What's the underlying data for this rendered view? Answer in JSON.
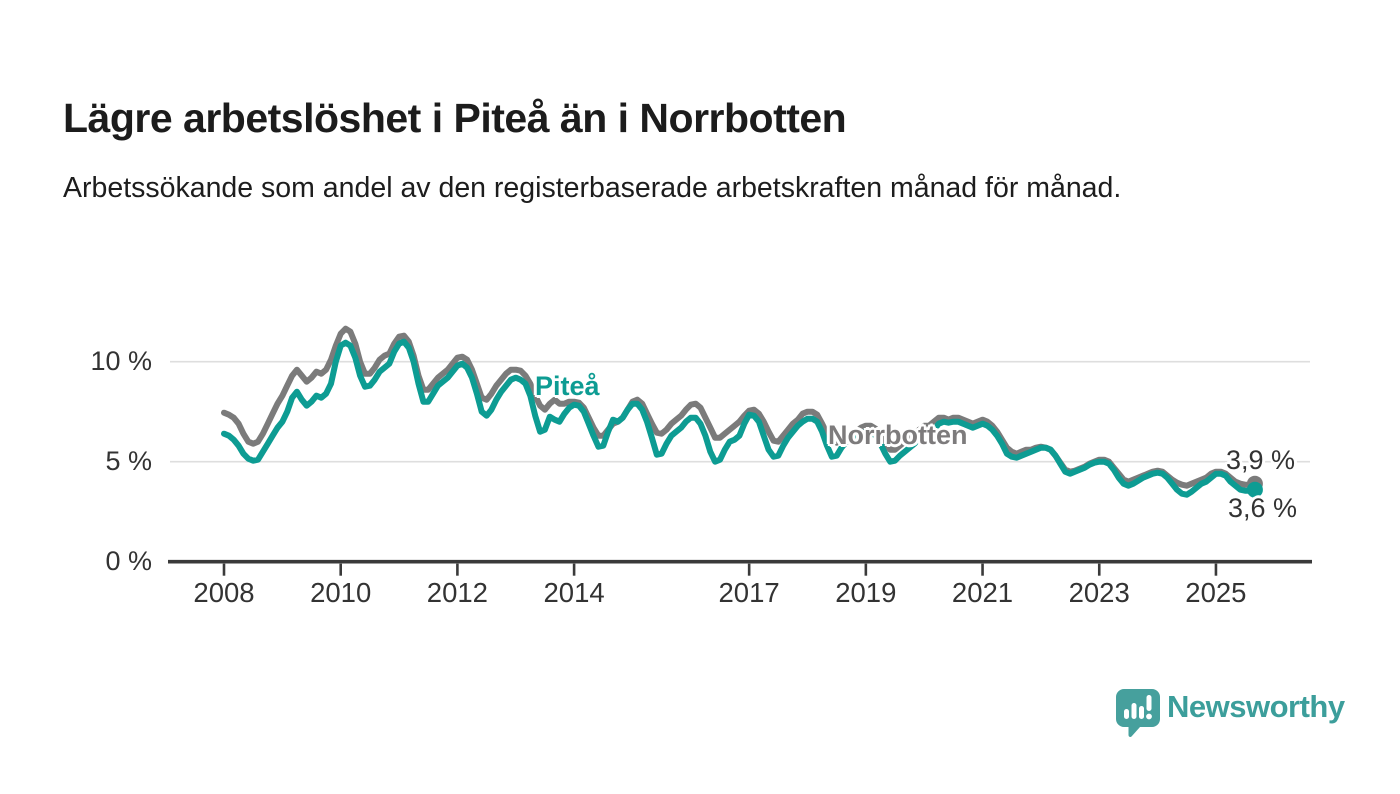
{
  "header": {
    "title": "Lägre arbetslöshet i Piteå än i Norrbotten",
    "subtitle": "Arbetssökande som andel av den registerbaserade arbetskraften månad för månad."
  },
  "chart_data": {
    "type": "line",
    "title": "Lägre arbetslöshet i Piteå än i Norrbotten",
    "subtitle": "Arbetssökande som andel av den registerbaserade arbetskraften månad för månad.",
    "unit": "%",
    "frequency": "monthly",
    "x_start": {
      "year": 2008,
      "month": 1
    },
    "x_end": {
      "year": 2025,
      "month": 9
    },
    "x_tick_years": [
      2008,
      2010,
      2012,
      2014,
      2017,
      2019,
      2021,
      2023,
      2025
    ],
    "x_tick_labels": [
      "2008",
      "2010",
      "2012",
      "2014",
      "2017",
      "2019",
      "2021",
      "2023",
      "2025"
    ],
    "y_ticks": [
      {
        "value": 0,
        "label": "0 %"
      },
      {
        "value": 5,
        "label": "5 %"
      },
      {
        "value": 10,
        "label": "10 %"
      }
    ],
    "ylim": [
      0,
      12.5
    ],
    "grid": "horizontal",
    "legend_position": "inline-labels",
    "colors": {
      "piteå": "#0D9C93",
      "norrbotten": "#7B7B7B",
      "gridline": "#DEDEDE",
      "axis": "#3A3A3A"
    },
    "series": [
      {
        "name": "Norrbotten",
        "color": "#7B7B7B",
        "end_label": "3,9 %",
        "end_value": 3.9,
        "values": [
          7.45,
          7.35,
          7.2,
          6.9,
          6.4,
          6.0,
          5.9,
          6.0,
          6.4,
          6.9,
          7.4,
          7.9,
          8.3,
          8.8,
          9.3,
          9.6,
          9.3,
          9.0,
          9.2,
          9.5,
          9.4,
          9.6,
          10.1,
          10.8,
          11.4,
          11.65,
          11.5,
          10.9,
          10.0,
          9.4,
          9.4,
          9.7,
          10.1,
          10.3,
          10.4,
          10.9,
          11.25,
          11.3,
          11.0,
          10.3,
          9.3,
          8.6,
          8.6,
          8.9,
          9.2,
          9.4,
          9.6,
          9.9,
          10.2,
          10.25,
          10.1,
          9.6,
          8.9,
          8.2,
          8.1,
          8.4,
          8.8,
          9.1,
          9.4,
          9.6,
          9.6,
          9.55,
          9.3,
          8.9,
          8.3,
          7.8,
          7.6,
          7.9,
          8.1,
          7.9,
          7.9,
          8.0,
          8.0,
          7.95,
          7.7,
          7.2,
          6.7,
          6.3,
          6.3,
          6.6,
          6.9,
          7.0,
          7.2,
          7.6,
          8.0,
          8.1,
          7.9,
          7.4,
          6.9,
          6.45,
          6.4,
          6.6,
          6.9,
          7.1,
          7.3,
          7.6,
          7.85,
          7.9,
          7.7,
          7.2,
          6.7,
          6.2,
          6.2,
          6.4,
          6.6,
          6.8,
          7.0,
          7.3,
          7.55,
          7.6,
          7.4,
          7.0,
          6.5,
          6.05,
          6.0,
          6.3,
          6.6,
          6.9,
          7.1,
          7.4,
          7.5,
          7.5,
          7.35,
          6.9,
          6.4,
          6.0,
          5.95,
          6.1,
          6.3,
          6.4,
          6.5,
          6.7,
          6.8,
          6.8,
          6.65,
          6.3,
          5.9,
          5.6,
          5.6,
          5.8,
          6.0,
          6.2,
          6.4,
          6.6,
          6.8,
          6.8,
          7.0,
          7.2,
          7.2,
          7.1,
          7.2,
          7.2,
          7.1,
          7.0,
          6.9,
          7.0,
          7.1,
          7.0,
          6.8,
          6.5,
          6.1,
          5.7,
          5.5,
          5.4,
          5.5,
          5.6,
          5.6,
          5.7,
          5.75,
          5.7,
          5.6,
          5.3,
          4.95,
          4.6,
          4.5,
          4.55,
          4.65,
          4.75,
          4.9,
          5.0,
          5.1,
          5.1,
          5.0,
          4.7,
          4.4,
          4.1,
          4.0,
          4.1,
          4.2,
          4.3,
          4.4,
          4.5,
          4.55,
          4.5,
          4.3,
          4.1,
          3.95,
          3.85,
          3.8,
          3.9,
          4.0,
          4.1,
          4.2,
          4.4,
          4.5,
          4.5,
          4.4,
          4.2,
          4.0,
          3.9,
          3.85,
          3.85,
          3.9
        ]
      },
      {
        "name": "Piteå",
        "color": "#0D9C93",
        "end_label": "3,6 %",
        "end_value": 3.6,
        "values": [
          6.4,
          6.3,
          6.1,
          5.8,
          5.4,
          5.15,
          5.05,
          5.1,
          5.5,
          5.9,
          6.3,
          6.7,
          7.0,
          7.5,
          8.2,
          8.5,
          8.1,
          7.8,
          8.0,
          8.3,
          8.2,
          8.4,
          8.9,
          10.0,
          10.8,
          10.95,
          10.8,
          10.2,
          9.3,
          8.75,
          8.8,
          9.1,
          9.5,
          9.7,
          9.9,
          10.5,
          10.9,
          11.0,
          10.7,
          10.0,
          8.9,
          8.0,
          8.0,
          8.4,
          8.8,
          9.0,
          9.2,
          9.5,
          9.8,
          9.9,
          9.7,
          9.2,
          8.4,
          7.5,
          7.3,
          7.6,
          8.1,
          8.5,
          8.8,
          9.1,
          9.2,
          9.1,
          8.9,
          8.3,
          7.3,
          6.5,
          6.6,
          7.25,
          7.1,
          7.0,
          7.4,
          7.7,
          7.85,
          7.8,
          7.5,
          6.9,
          6.3,
          5.75,
          5.8,
          6.5,
          7.1,
          7.0,
          7.2,
          7.6,
          7.9,
          7.9,
          7.6,
          7.0,
          6.2,
          5.35,
          5.4,
          5.9,
          6.3,
          6.5,
          6.7,
          7.0,
          7.2,
          7.2,
          6.9,
          6.3,
          5.5,
          5.0,
          5.1,
          5.6,
          6.0,
          6.1,
          6.3,
          6.9,
          7.35,
          7.3,
          7.0,
          6.3,
          5.6,
          5.25,
          5.3,
          5.8,
          6.2,
          6.5,
          6.8,
          7.0,
          7.15,
          7.15,
          7.0,
          6.5,
          5.8,
          5.25,
          5.3,
          5.7,
          6.0,
          6.1,
          6.2,
          6.4,
          6.5,
          6.5,
          6.3,
          5.9,
          5.4,
          5.0,
          5.05,
          5.3,
          5.5,
          5.7,
          5.9,
          6.2,
          6.4,
          6.4,
          6.6,
          6.9,
          7.0,
          6.95,
          7.0,
          7.0,
          6.9,
          6.8,
          6.7,
          6.8,
          6.9,
          6.8,
          6.6,
          6.3,
          5.9,
          5.4,
          5.25,
          5.2,
          5.3,
          5.4,
          5.5,
          5.6,
          5.7,
          5.7,
          5.6,
          5.3,
          4.9,
          4.5,
          4.4,
          4.5,
          4.6,
          4.7,
          4.85,
          4.95,
          5.0,
          5.0,
          4.9,
          4.6,
          4.2,
          3.9,
          3.8,
          3.9,
          4.05,
          4.2,
          4.3,
          4.4,
          4.45,
          4.4,
          4.2,
          3.9,
          3.6,
          3.4,
          3.35,
          3.5,
          3.7,
          3.9,
          4.0,
          4.2,
          4.4,
          4.4,
          4.3,
          4.0,
          3.8,
          3.6,
          3.55,
          3.55,
          3.6
        ]
      }
    ],
    "annotations": [
      {
        "text": "Piteå",
        "color": "#0D9C93"
      },
      {
        "text": "Norrbotten",
        "color": "#7D7B7C"
      }
    ]
  },
  "footer": {
    "brand": "Newsworthy",
    "logo_icon": "bar-chart-speech-bubble-icon"
  }
}
